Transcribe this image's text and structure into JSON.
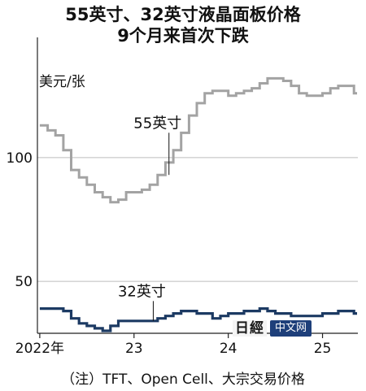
{
  "title_lines": [
    "55英寸、32英寸液晶面板价格",
    "9个月来首次下跌"
  ],
  "footnote": "（注）TFT、Open Cell、大宗交易价格",
  "logo": {
    "mark": "日經",
    "badge": "中文网"
  },
  "colors": {
    "series_55": "#a3a3a3",
    "series_32": "#1c3a63",
    "axis": "#222222",
    "grid": "#bdbdbd"
  },
  "chart_data": {
    "type": "line",
    "title": "55英寸、32英寸液晶面板价格 9个月来首次下跌",
    "ylabel": "美元/张",
    "xlabel": "",
    "x_ticks": [
      {
        "label": "2022年",
        "t": 0
      },
      {
        "label": "23",
        "t": 12
      },
      {
        "label": "24",
        "t": 24
      },
      {
        "label": "25",
        "t": 36
      }
    ],
    "y_ticks": [
      50,
      100
    ],
    "ylim": [
      29,
      142
    ],
    "xlim": [
      -0.3,
      40.5
    ],
    "grid": "horizontal",
    "series": [
      {
        "name": "55英寸",
        "values": [
          113,
          111,
          109,
          103,
          95,
          92,
          89,
          86,
          84,
          82,
          83,
          86,
          86,
          87,
          89,
          93,
          98,
          103,
          110,
          117,
          122,
          126,
          127,
          127,
          125,
          126,
          127,
          128,
          130,
          132,
          132,
          131,
          129,
          126,
          125,
          125,
          126,
          128,
          129,
          129,
          126
        ]
      },
      {
        "name": "32英寸",
        "values": [
          39,
          39,
          39,
          38,
          35,
          33,
          32,
          31,
          30,
          32,
          34,
          34,
          34,
          34,
          34,
          35,
          36,
          37,
          38,
          38,
          37,
          37,
          35,
          36,
          37,
          37,
          38,
          38,
          39,
          38,
          37,
          37,
          36,
          36,
          36,
          36,
          37,
          37,
          38,
          38,
          37
        ]
      }
    ],
    "annotations": [
      {
        "text": "55英寸",
        "series": "55英寸",
        "at_t": 15,
        "value": 112
      },
      {
        "text": "32英寸",
        "series": "32英寸",
        "at_t": 13,
        "value": 44
      }
    ]
  }
}
